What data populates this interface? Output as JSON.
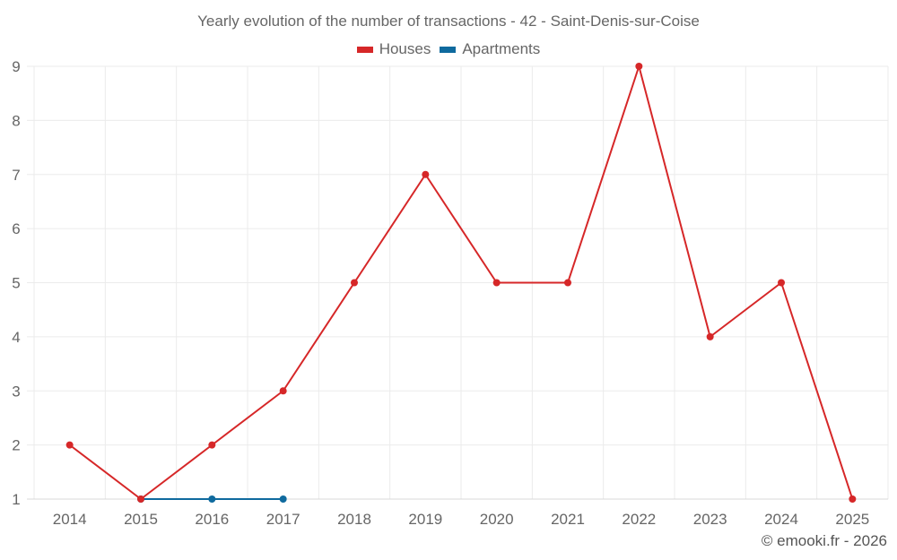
{
  "chart_data": {
    "type": "line",
    "title": "Yearly evolution of the number of transactions - 42 - Saint-Denis-sur-Coise",
    "xlabel": "",
    "ylabel": "",
    "categories": [
      "2014",
      "2015",
      "2016",
      "2017",
      "2018",
      "2019",
      "2020",
      "2021",
      "2022",
      "2023",
      "2024",
      "2025"
    ],
    "series": [
      {
        "name": "Houses",
        "color": "#d62728",
        "values": [
          2,
          1,
          2,
          3,
          5,
          7,
          5,
          5,
          9,
          4,
          5,
          1
        ]
      },
      {
        "name": "Apartments",
        "color": "#0f6a9e",
        "values": [
          null,
          1,
          1,
          1,
          null,
          null,
          null,
          null,
          null,
          null,
          null,
          null
        ]
      }
    ],
    "yticks": [
      1,
      2,
      3,
      4,
      5,
      6,
      7,
      8,
      9
    ],
    "ylim": [
      1,
      9
    ],
    "grid": true,
    "legend_position": "top"
  },
  "header": {
    "title": "Yearly evolution of the number of transactions - 42 - Saint-Denis-sur-Coise"
  },
  "legend": {
    "items": [
      {
        "label": "Houses",
        "color": "#d62728"
      },
      {
        "label": "Apartments",
        "color": "#0f6a9e"
      }
    ]
  },
  "footer": {
    "credit": "© emooki.fr - 2026"
  },
  "colors": {
    "grid": "#ebebeb",
    "axis_text": "#666666"
  }
}
